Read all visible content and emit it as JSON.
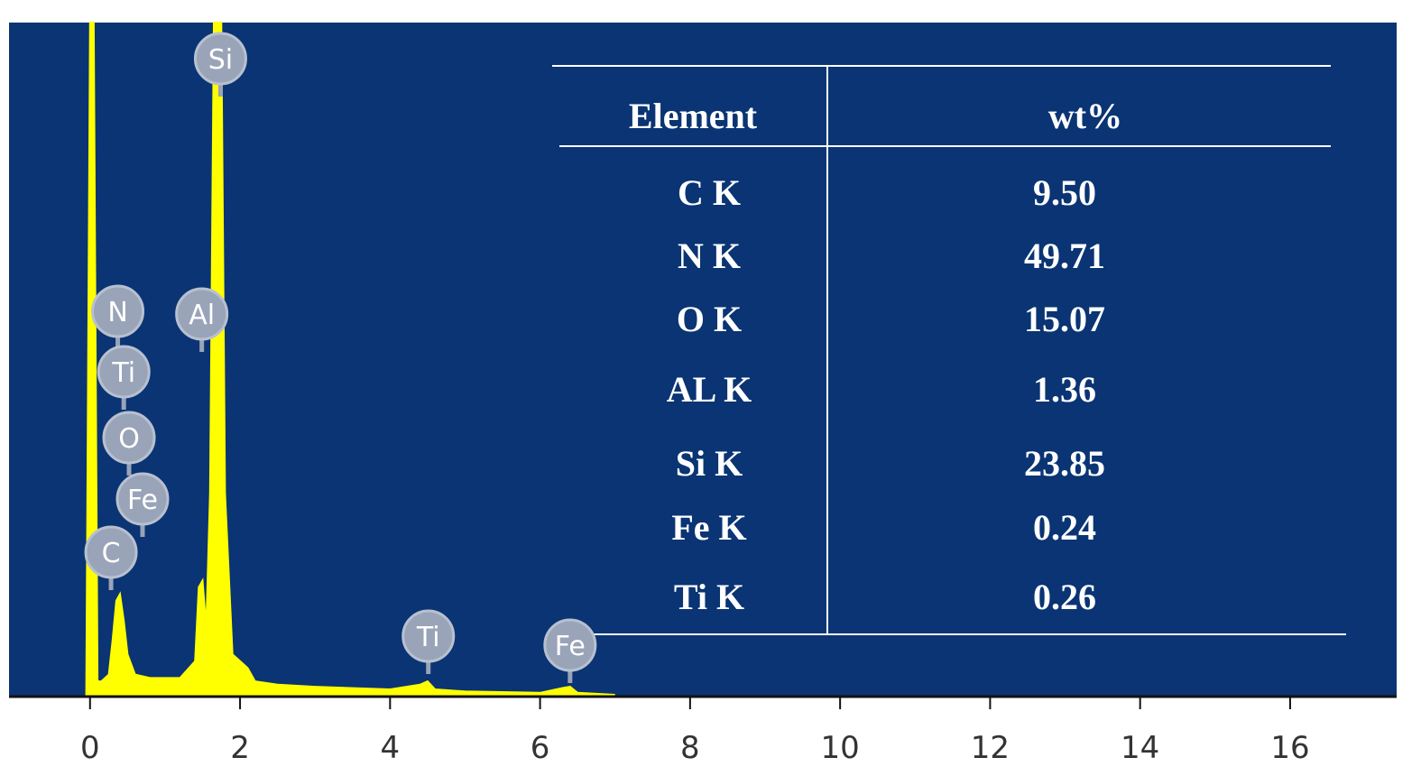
{
  "chart_data": {
    "type": "spectrum",
    "x": [
      -0.05,
      0,
      0.05,
      0.1,
      0.15,
      0.25,
      0.3,
      0.35,
      0.4,
      0.45,
      0.5,
      0.6,
      0.8,
      1.0,
      1.2,
      1.4,
      1.45,
      1.5,
      1.55,
      1.6,
      1.65,
      1.7,
      1.75,
      1.8,
      1.9,
      2.0,
      2.1,
      2.2,
      2.5,
      3,
      4,
      4.4,
      4.5,
      4.6,
      5,
      6,
      6.3,
      6.4,
      6.5,
      7
    ],
    "values": [
      0,
      100,
      100,
      2,
      2,
      3,
      8,
      14,
      15,
      11,
      6,
      3,
      2.5,
      2.5,
      2.5,
      5,
      16,
      17,
      10,
      30,
      100,
      100,
      100,
      30,
      6,
      5,
      4,
      2,
      1.5,
      1.2,
      0.8,
      1.5,
      2,
      0.8,
      0.5,
      0.3,
      1,
      1.2,
      0.3,
      0
    ],
    "color": "#ffff00",
    "background": "#0a3473",
    "xlim": [
      -1.08,
      17.42
    ],
    "xticks": [
      0,
      2,
      4,
      6,
      8,
      10,
      12,
      14,
      16
    ],
    "ylim": [
      0,
      100
    ],
    "markers": [
      {
        "label": "Si",
        "x": 1.74
      },
      {
        "label": "N",
        "x": 0.37
      },
      {
        "label": "Ti",
        "x": 0.45
      },
      {
        "label": "O",
        "x": 0.52
      },
      {
        "label": "Fe",
        "x": 0.7
      },
      {
        "label": "C",
        "x": 0.28
      },
      {
        "label": "Al",
        "x": 1.49
      },
      {
        "label": "Ti",
        "x": 4.51
      },
      {
        "label": "Fe",
        "x": 6.4
      }
    ],
    "table": {
      "header": [
        "Element",
        "wt%"
      ],
      "rows": [
        [
          "C K",
          "9.50"
        ],
        [
          "N K",
          "49.71"
        ],
        [
          "O K",
          "15.07"
        ],
        [
          "AL K",
          "1.36"
        ],
        [
          "Si K",
          "23.85"
        ],
        [
          "Fe K",
          "0.24"
        ],
        [
          "Ti K",
          "0.26"
        ]
      ]
    }
  }
}
